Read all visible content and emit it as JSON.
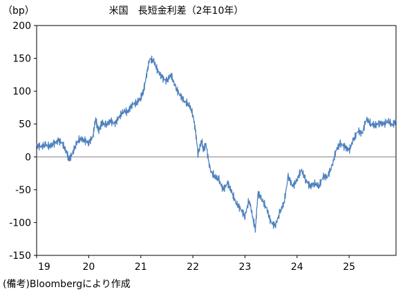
{
  "chart_data": {
    "type": "line",
    "title": "米国　長短金利差（2年10年）",
    "ylabel": "（bp）",
    "xlabel": "",
    "ylim": [
      -150,
      200
    ],
    "yticks": [
      200,
      150,
      100,
      50,
      0,
      -50,
      -100,
      -150
    ],
    "xlim": [
      2019.0,
      2025.9
    ],
    "xticks": [
      {
        "value": 2019.0,
        "label": "19"
      },
      {
        "value": 2020.0,
        "label": "20"
      },
      {
        "value": 2021.0,
        "label": "21"
      },
      {
        "value": 2022.0,
        "label": "22"
      },
      {
        "value": 2023.0,
        "label": "23"
      },
      {
        "value": 2024.0,
        "label": "24"
      },
      {
        "value": 2025.0,
        "label": "25"
      }
    ],
    "zero_line": true,
    "grid": false,
    "line_color": "#4f81bd",
    "series": [
      {
        "x": [
          2019.0,
          2019.08,
          2019.17,
          2019.25,
          2019.33,
          2019.42,
          2019.5,
          2019.58,
          2019.62,
          2019.67,
          2019.75,
          2019.83,
          2019.92,
          2020.0,
          2020.08,
          2020.13,
          2020.17,
          2020.2,
          2020.25,
          2020.33,
          2020.42,
          2020.5,
          2020.58,
          2020.67,
          2020.75,
          2020.83,
          2020.92,
          2021.0,
          2021.05,
          2021.1,
          2021.17,
          2021.25,
          2021.33,
          2021.42,
          2021.5,
          2021.58,
          2021.67,
          2021.75,
          2021.83,
          2021.92,
          2022.0,
          2022.05,
          2022.1,
          2022.17,
          2022.2,
          2022.25,
          2022.33,
          2022.42,
          2022.5,
          2022.58,
          2022.67,
          2022.75,
          2022.83,
          2022.92,
          2023.0,
          2023.08,
          2023.17,
          2023.2,
          2023.25,
          2023.33,
          2023.42,
          2023.5,
          2023.58,
          2023.67,
          2023.75,
          2023.83,
          2023.92,
          2024.0,
          2024.08,
          2024.17,
          2024.25,
          2024.33,
          2024.42,
          2024.5,
          2024.58,
          2024.67,
          2024.75,
          2024.83,
          2024.92,
          2025.0,
          2025.08,
          2025.17,
          2025.25,
          2025.33,
          2025.42,
          2025.5,
          2025.58,
          2025.67,
          2025.75,
          2025.83,
          2025.9
        ],
        "values": [
          17,
          16,
          18,
          16,
          20,
          25,
          20,
          5,
          -3,
          2,
          18,
          28,
          25,
          22,
          30,
          58,
          45,
          40,
          52,
          48,
          55,
          50,
          60,
          70,
          68,
          80,
          82,
          90,
          100,
          120,
          150,
          145,
          130,
          120,
          115,
          125,
          105,
          95,
          85,
          80,
          65,
          40,
          5,
          25,
          10,
          20,
          -20,
          -30,
          -35,
          -50,
          -40,
          -55,
          -70,
          -80,
          -90,
          -65,
          -100,
          -110,
          -55,
          -65,
          -80,
          -100,
          -105,
          -85,
          -70,
          -30,
          -45,
          -35,
          -20,
          -35,
          -45,
          -40,
          -45,
          -30,
          -30,
          -15,
          10,
          20,
          15,
          10,
          25,
          40,
          35,
          58,
          50,
          48,
          52,
          50,
          55,
          48,
          55
        ]
      }
    ]
  },
  "note": "(備考)Bloombergにより作成"
}
